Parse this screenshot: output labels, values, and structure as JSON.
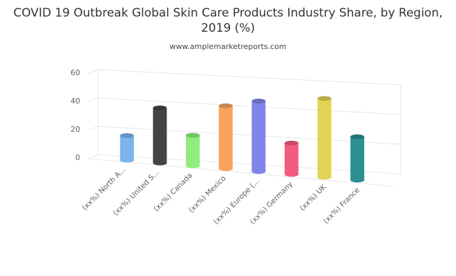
{
  "chart_data": {
    "type": "bar",
    "title": "COVID 19 Outbreak Global Skin Care Products Industry Share, by Region, 2019 (%)",
    "subtitle": "www.amplemarketreports.com",
    "categories": [
      "(xx%) North A...",
      "(xx%) United S...",
      "(xx%) Canada",
      "(xx%) Mexico",
      "(xx%) Europe (...",
      "(xx%) Germany",
      "(xx%) UK",
      "(xx%) France"
    ],
    "values": [
      18,
      40,
      22,
      45,
      50,
      22,
      55,
      30
    ],
    "colors": [
      "#7cb5ec",
      "#434348",
      "#90ed7d",
      "#f7a35c",
      "#8085e9",
      "#f15c80",
      "#e4d354",
      "#2b908f"
    ],
    "yticks": [
      0,
      20,
      40,
      60
    ],
    "ylim": [
      0,
      60
    ],
    "grid": true,
    "legend": "none"
  }
}
